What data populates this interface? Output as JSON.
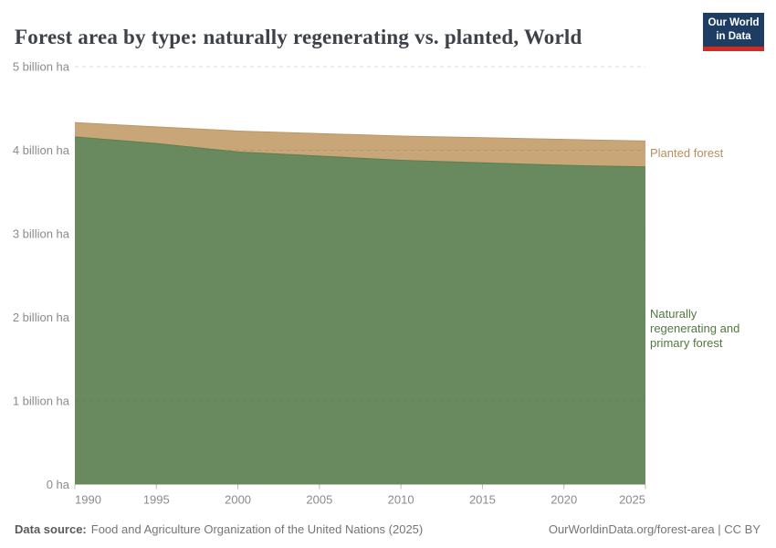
{
  "logo": {
    "line1": "Our World",
    "line2": "in Data",
    "bg_color": "#1d3d63",
    "stripe_color": "#d12a20"
  },
  "chart_data": {
    "type": "area",
    "stacked": true,
    "title": "Forest area by type: naturally regenerating vs. planted, World",
    "x": [
      1990,
      1995,
      2000,
      2005,
      2010,
      2015,
      2020,
      2025
    ],
    "x_unit": "year",
    "series": [
      {
        "name": "Naturally regenerating and primary forest",
        "values": [
          4.16,
          4.08,
          3.98,
          3.93,
          3.88,
          3.85,
          3.82,
          3.8
        ],
        "area_color": "#698a5e",
        "edge_color": "#5d7f50",
        "label_color": "#51783f"
      },
      {
        "name": "Planted forest",
        "values": [
          0.17,
          0.2,
          0.25,
          0.27,
          0.29,
          0.3,
          0.31,
          0.31
        ],
        "area_color": "#c9a678",
        "edge_color": "#bd9668",
        "label_color": "#b98e5e"
      }
    ],
    "unit": "billion ha",
    "ylim": [
      0,
      5
    ],
    "yticks": [
      {
        "value": 0,
        "label": "0 ha"
      },
      {
        "value": 1,
        "label": "1 billion ha"
      },
      {
        "value": 2,
        "label": "2 billion ha"
      },
      {
        "value": 3,
        "label": "3 billion ha"
      },
      {
        "value": 4,
        "label": "4 billion ha"
      },
      {
        "value": 5,
        "label": "5 billion ha"
      }
    ],
    "xticks": [
      1990,
      1995,
      2000,
      2005,
      2010,
      2015,
      2020,
      2025
    ],
    "grid": "horizontal-dashed",
    "legend_position": "right-inline-labels"
  },
  "footer": {
    "data_source_label": "Data source:",
    "data_source_text": "Food and Agriculture Organization of the United Nations (2025)",
    "attribution": "OurWorldinData.org/forest-area | CC BY"
  }
}
